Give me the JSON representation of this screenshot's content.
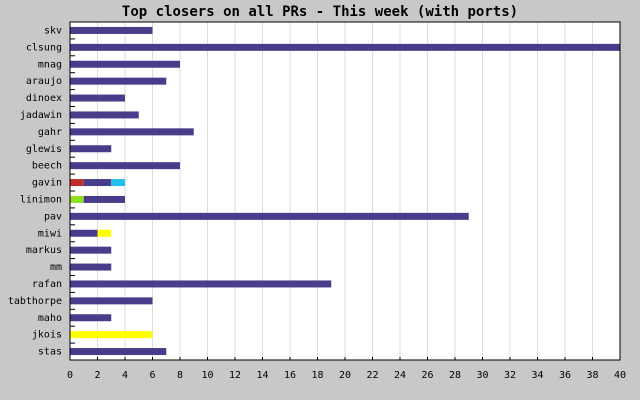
{
  "chart_data": {
    "type": "hbar-stacked",
    "title": "Top closers on all PRs - This week (with ports)",
    "categories": [
      "skv",
      "clsung",
      "mnag",
      "araujo",
      "dinoex",
      "jadawin",
      "gahr",
      "glewis",
      "beech",
      "gavin",
      "linimon",
      "pav",
      "miwi",
      "markus",
      "mm",
      "rafan",
      "tabthorpe",
      "maho",
      "jkois",
      "stas"
    ],
    "series": [
      {
        "color": "#c0302a",
        "values": [
          0,
          0,
          0,
          0,
          0,
          0,
          0,
          0,
          0,
          1,
          0,
          0,
          0,
          0,
          0,
          0,
          0,
          0,
          0,
          0
        ]
      },
      {
        "color": "#8fe020",
        "values": [
          0,
          0,
          0,
          0,
          0,
          0,
          0,
          0,
          0,
          0,
          1,
          0,
          0,
          0,
          0,
          0,
          0,
          0,
          0,
          0
        ]
      },
      {
        "color": "#483d8b",
        "values": [
          6,
          40,
          8,
          7,
          4,
          5,
          9,
          3,
          8,
          2,
          3,
          29,
          2,
          3,
          3,
          19,
          6,
          3,
          0,
          7
        ]
      },
      {
        "color": "#ffff00",
        "values": [
          0,
          0,
          0,
          0,
          0,
          0,
          0,
          0,
          0,
          0,
          0,
          0,
          1,
          0,
          0,
          0,
          0,
          0,
          6,
          0
        ]
      },
      {
        "color": "#20c0f0",
        "values": [
          0,
          0,
          0,
          0,
          0,
          0,
          0,
          0,
          0,
          1,
          0,
          0,
          0,
          0,
          0,
          0,
          0,
          0,
          0,
          0
        ]
      }
    ],
    "xlim": [
      0,
      40
    ],
    "xticks": [
      0,
      2,
      4,
      6,
      8,
      10,
      12,
      14,
      16,
      18,
      20,
      22,
      24,
      26,
      28,
      30,
      32,
      34,
      36,
      38,
      40
    ],
    "grid": true
  }
}
